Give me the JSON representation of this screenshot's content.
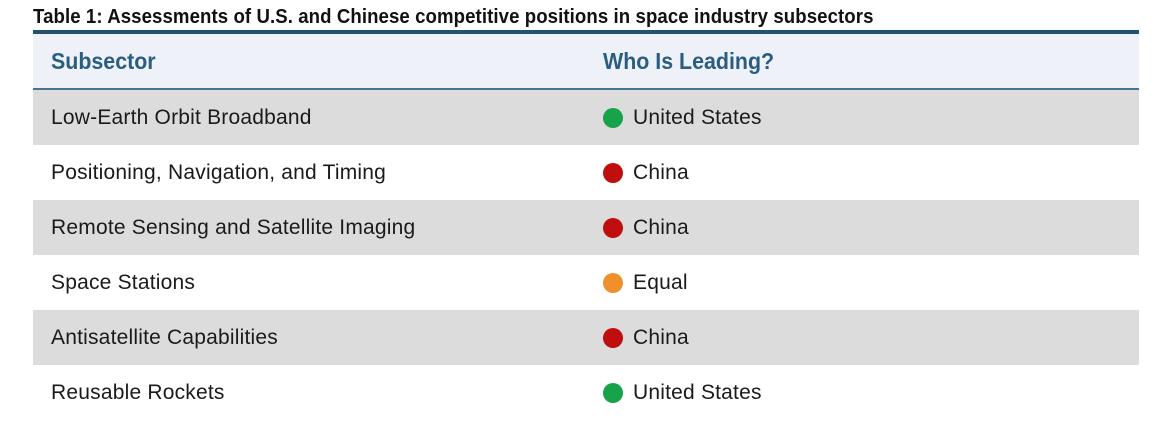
{
  "caption": "Table 1: Assessments of U.S. and Chinese competitive positions in space industry subsectors",
  "headers": {
    "subsector": "Subsector",
    "leading": "Who Is Leading?"
  },
  "status_colors": {
    "United States": "#16a34a",
    "China": "#c00d0d",
    "Equal": "#f0902c"
  },
  "rows": [
    {
      "subsector": "Low-Earth Orbit Broadband",
      "leading": "United States",
      "status_icon": "green-circle-icon"
    },
    {
      "subsector": "Positioning, Navigation, and Timing",
      "leading": "China",
      "status_icon": "red-circle-icon"
    },
    {
      "subsector": "Remote Sensing and Satellite Imaging",
      "leading": "China",
      "status_icon": "red-circle-icon"
    },
    {
      "subsector": "Space Stations",
      "leading": "Equal",
      "status_icon": "orange-circle-icon"
    },
    {
      "subsector": "Antisatellite Capabilities",
      "leading": "China",
      "status_icon": "red-circle-icon"
    },
    {
      "subsector": "Reusable Rockets",
      "leading": "United States",
      "status_icon": "green-circle-icon"
    }
  ]
}
